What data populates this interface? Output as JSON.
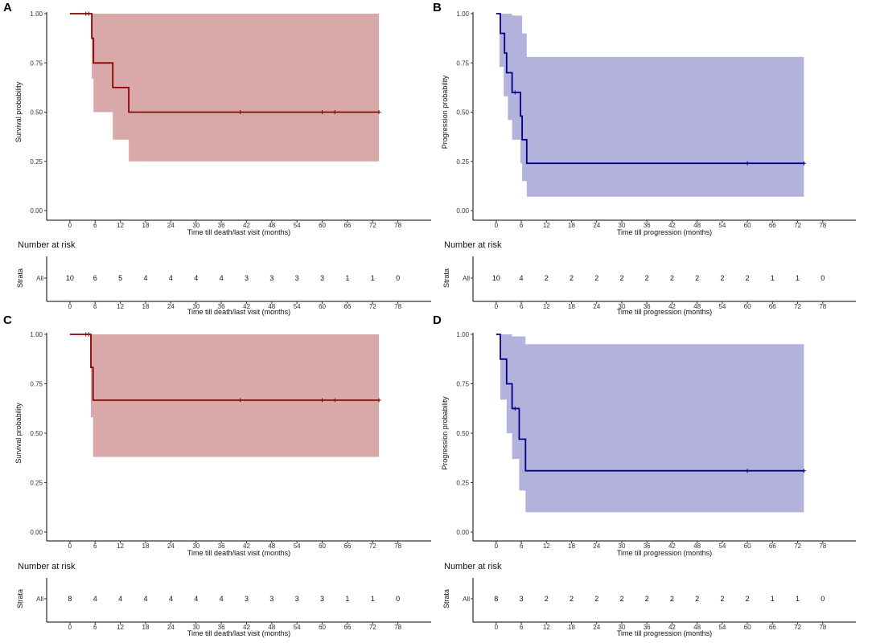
{
  "chart_data": [
    {
      "panel": "A",
      "type": "line",
      "step": true,
      "ylabel": "Survival probability",
      "xlabel": "Time till death/last visit (months)",
      "line_color": "#8b0000",
      "band_color": "#d9a9a9",
      "xlim": [
        -4,
        84
      ],
      "ylim": [
        0,
        1
      ],
      "x_ticks": [
        "0",
        "6",
        "12",
        "18",
        "24",
        "30",
        "36",
        "42",
        "48",
        "54",
        "60",
        "66",
        "72",
        "78"
      ],
      "y_ticks": [
        "0.00",
        "0.25",
        "0.50",
        "0.75",
        "1.00"
      ],
      "survival_steps": [
        [
          0,
          1.0
        ],
        [
          5.2,
          0.875
        ],
        [
          5.6,
          0.75
        ],
        [
          10.2,
          0.625
        ],
        [
          14.0,
          0.5
        ],
        [
          73.5,
          0.5
        ]
      ],
      "ci_lower": [
        [
          0,
          1.0
        ],
        [
          5.2,
          0.67
        ],
        [
          5.6,
          0.5
        ],
        [
          10.2,
          0.36
        ],
        [
          14.0,
          0.25
        ],
        [
          73.5,
          0.25
        ]
      ],
      "ci_upper": [
        [
          0,
          1.0
        ],
        [
          73.5,
          1.0
        ]
      ],
      "censor_times": [
        3.8,
        4.5,
        40.5,
        60.0,
        63.0,
        73.5
      ],
      "risk_table": {
        "title": "Number at risk",
        "strata_label": "Strata",
        "group": "All",
        "counts": [
          "10",
          "6",
          "5",
          "4",
          "4",
          "4",
          "4",
          "3",
          "3",
          "3",
          "3",
          "1",
          "1",
          "0"
        ],
        "xlabel": "Time till death/last visit (months)"
      }
    },
    {
      "panel": "B",
      "type": "line",
      "step": true,
      "ylabel": "Progression probability",
      "xlabel": "Time till progression (months)",
      "line_color": "#00008b",
      "band_color": "#b2b2dc",
      "xlim": [
        -4,
        84
      ],
      "ylim": [
        0,
        1
      ],
      "x_ticks": [
        "0",
        "6",
        "12",
        "18",
        "24",
        "30",
        "36",
        "42",
        "48",
        "54",
        "60",
        "66",
        "72",
        "78"
      ],
      "y_ticks": [
        "0.00",
        "0.25",
        "0.50",
        "0.75",
        "1.00"
      ],
      "survival_steps": [
        [
          0,
          1.0
        ],
        [
          1.0,
          0.9
        ],
        [
          2.0,
          0.8
        ],
        [
          2.5,
          0.7
        ],
        [
          3.8,
          0.6
        ],
        [
          5.8,
          0.48
        ],
        [
          6.2,
          0.36
        ],
        [
          7.3,
          0.24
        ],
        [
          73.5,
          0.24
        ]
      ],
      "ci_lower": [
        [
          0,
          1.0
        ],
        [
          0.8,
          0.73
        ],
        [
          1.8,
          0.58
        ],
        [
          2.8,
          0.46
        ],
        [
          3.8,
          0.36
        ],
        [
          5.8,
          0.24
        ],
        [
          6.2,
          0.15
        ],
        [
          7.3,
          0.07
        ],
        [
          73.5,
          0.07
        ]
      ],
      "ci_upper": [
        [
          0,
          1.0
        ],
        [
          3.8,
          0.99
        ],
        [
          6.2,
          0.9
        ],
        [
          7.3,
          0.78
        ],
        [
          73.5,
          0.78
        ]
      ],
      "censor_times": [
        4.5,
        60.0,
        73.5
      ],
      "risk_table": {
        "title": "Number at risk",
        "strata_label": "Strata",
        "group": "All",
        "counts": [
          "10",
          "4",
          "2",
          "2",
          "2",
          "2",
          "2",
          "2",
          "2",
          "2",
          "2",
          "1",
          "1",
          "0"
        ],
        "xlabel": "Time till progression (months)"
      }
    },
    {
      "panel": "C",
      "type": "line",
      "step": true,
      "ylabel": "Survival probability",
      "xlabel": "Time till death/last visit (months)",
      "line_color": "#8b0000",
      "band_color": "#d9a9a9",
      "xlim": [
        -4,
        84
      ],
      "ylim": [
        0,
        1
      ],
      "x_ticks": [
        "0",
        "6",
        "12",
        "18",
        "24",
        "30",
        "36",
        "42",
        "48",
        "54",
        "60",
        "66",
        "72",
        "78"
      ],
      "y_ticks": [
        "0.00",
        "0.25",
        "0.50",
        "0.75",
        "1.00"
      ],
      "survival_steps": [
        [
          0,
          1.0
        ],
        [
          5.0,
          0.833
        ],
        [
          5.5,
          0.667
        ],
        [
          73.5,
          0.667
        ]
      ],
      "ci_lower": [
        [
          0,
          1.0
        ],
        [
          5.0,
          0.58
        ],
        [
          5.5,
          0.38
        ],
        [
          73.5,
          0.38
        ]
      ],
      "ci_upper": [
        [
          0,
          1.0
        ],
        [
          73.5,
          1.0
        ]
      ],
      "censor_times": [
        3.8,
        4.5,
        40.5,
        60.0,
        63.0,
        73.5
      ],
      "risk_table": {
        "title": "Number at risk",
        "strata_label": "Strata",
        "group": "All",
        "counts": [
          "8",
          "4",
          "4",
          "4",
          "4",
          "4",
          "4",
          "3",
          "3",
          "3",
          "3",
          "1",
          "1",
          "0"
        ],
        "xlabel": "Time till death/last visit (months)"
      }
    },
    {
      "panel": "D",
      "type": "line",
      "step": true,
      "ylabel": "Progression probability",
      "xlabel": "Time till progression (months)",
      "line_color": "#00008b",
      "band_color": "#b2b2dc",
      "xlim": [
        -4,
        84
      ],
      "ylim": [
        0,
        1
      ],
      "x_ticks": [
        "0",
        "6",
        "12",
        "18",
        "24",
        "30",
        "36",
        "42",
        "48",
        "54",
        "60",
        "66",
        "72",
        "78"
      ],
      "y_ticks": [
        "0.00",
        "0.25",
        "0.50",
        "0.75",
        "1.00"
      ],
      "survival_steps": [
        [
          0,
          1.0
        ],
        [
          1.0,
          0.875
        ],
        [
          2.5,
          0.75
        ],
        [
          3.8,
          0.625
        ],
        [
          5.5,
          0.47
        ],
        [
          7.0,
          0.31
        ],
        [
          73.5,
          0.31
        ]
      ],
      "ci_lower": [
        [
          0,
          1.0
        ],
        [
          1.0,
          0.67
        ],
        [
          2.5,
          0.5
        ],
        [
          3.8,
          0.37
        ],
        [
          5.5,
          0.21
        ],
        [
          7.0,
          0.1
        ],
        [
          73.5,
          0.1
        ]
      ],
      "ci_upper": [
        [
          0,
          1.0
        ],
        [
          3.8,
          0.99
        ],
        [
          7.0,
          0.95
        ],
        [
          73.5,
          0.95
        ]
      ],
      "censor_times": [
        4.5,
        60.0,
        73.5
      ],
      "risk_table": {
        "title": "Number at risk",
        "strata_label": "Strata",
        "group": "All",
        "counts": [
          "8",
          "3",
          "2",
          "2",
          "2",
          "2",
          "2",
          "2",
          "2",
          "2",
          "2",
          "1",
          "1",
          "0"
        ],
        "xlabel": "Time till progression (months)"
      }
    }
  ]
}
